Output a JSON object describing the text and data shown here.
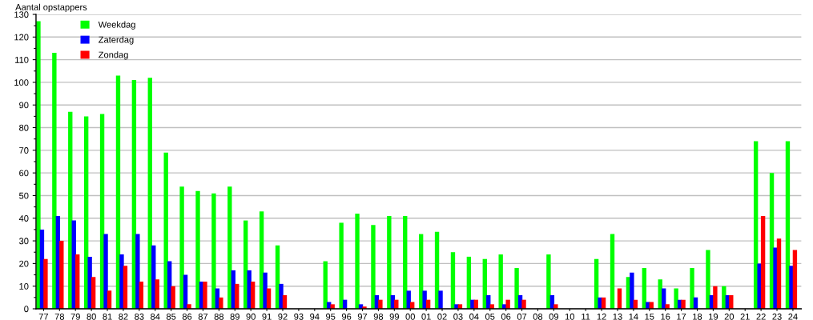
{
  "chart_data": {
    "type": "bar",
    "ylabel": "Aantal opstappers",
    "categories": [
      "77",
      "78",
      "79",
      "80",
      "81",
      "82",
      "83",
      "84",
      "85",
      "86",
      "87",
      "88",
      "89",
      "90",
      "91",
      "92",
      "93",
      "94",
      "95",
      "96",
      "97",
      "98",
      "99",
      "00",
      "01",
      "02",
      "03",
      "04",
      "05",
      "06",
      "07",
      "08",
      "09",
      "10",
      "11",
      "12",
      "13",
      "14",
      "15",
      "16",
      "17",
      "18",
      "19",
      "20",
      "21",
      "22",
      "23",
      "24"
    ],
    "series": [
      {
        "name": "Weekdag",
        "color": "#00ff00",
        "values": [
          127,
          113,
          87,
          85,
          86,
          103,
          101,
          102,
          69,
          54,
          52,
          51,
          54,
          39,
          43,
          28,
          null,
          null,
          21,
          38,
          42,
          37,
          41,
          41,
          33,
          34,
          25,
          23,
          22,
          24,
          18,
          null,
          24,
          null,
          null,
          22,
          33,
          14,
          18,
          13,
          9,
          18,
          26,
          10,
          null,
          74,
          60,
          74
        ]
      },
      {
        "name": "Zaterdag",
        "color": "#0000ff",
        "values": [
          35,
          41,
          39,
          23,
          33,
          24,
          33,
          28,
          21,
          15,
          12,
          9,
          17,
          17,
          16,
          11,
          null,
          null,
          3,
          4,
          2,
          6,
          6,
          8,
          8,
          8,
          2,
          4,
          6,
          2,
          6,
          null,
          6,
          null,
          null,
          5,
          null,
          16,
          3,
          9,
          4,
          5,
          6,
          6,
          null,
          20,
          27,
          19
        ]
      },
      {
        "name": "Zondag",
        "color": "#ff0000",
        "values": [
          22,
          30,
          24,
          14,
          8,
          19,
          12,
          13,
          10,
          2,
          12,
          5,
          11,
          12,
          9,
          6,
          null,
          null,
          2,
          null,
          1,
          4,
          4,
          3,
          4,
          null,
          2,
          4,
          2,
          4,
          4,
          null,
          2,
          null,
          null,
          5,
          9,
          4,
          3,
          2,
          4,
          null,
          10,
          6,
          null,
          41,
          31,
          26
        ]
      }
    ],
    "ylim": [
      0,
      130
    ],
    "yticks": [
      0,
      {
        "value": 5,
        "label": null
      },
      10,
      {
        "value": 15,
        "label": null
      },
      20,
      {
        "value": 25,
        "label": null
      },
      30,
      {
        "value": 35,
        "label": null
      },
      40,
      {
        "value": 45,
        "label": null
      },
      50,
      {
        "value": 55,
        "label": null
      },
      60,
      {
        "value": 65,
        "label": null
      },
      70,
      {
        "value": 75,
        "label": null
      },
      80,
      {
        "value": 85,
        "label": null
      },
      90,
      {
        "value": 95,
        "label": null
      },
      100,
      {
        "value": 105,
        "label": null
      },
      110,
      {
        "value": 115,
        "label": null
      },
      120,
      {
        "value": 125,
        "label": null
      },
      130
    ],
    "grid": "y",
    "legend": "top left"
  }
}
